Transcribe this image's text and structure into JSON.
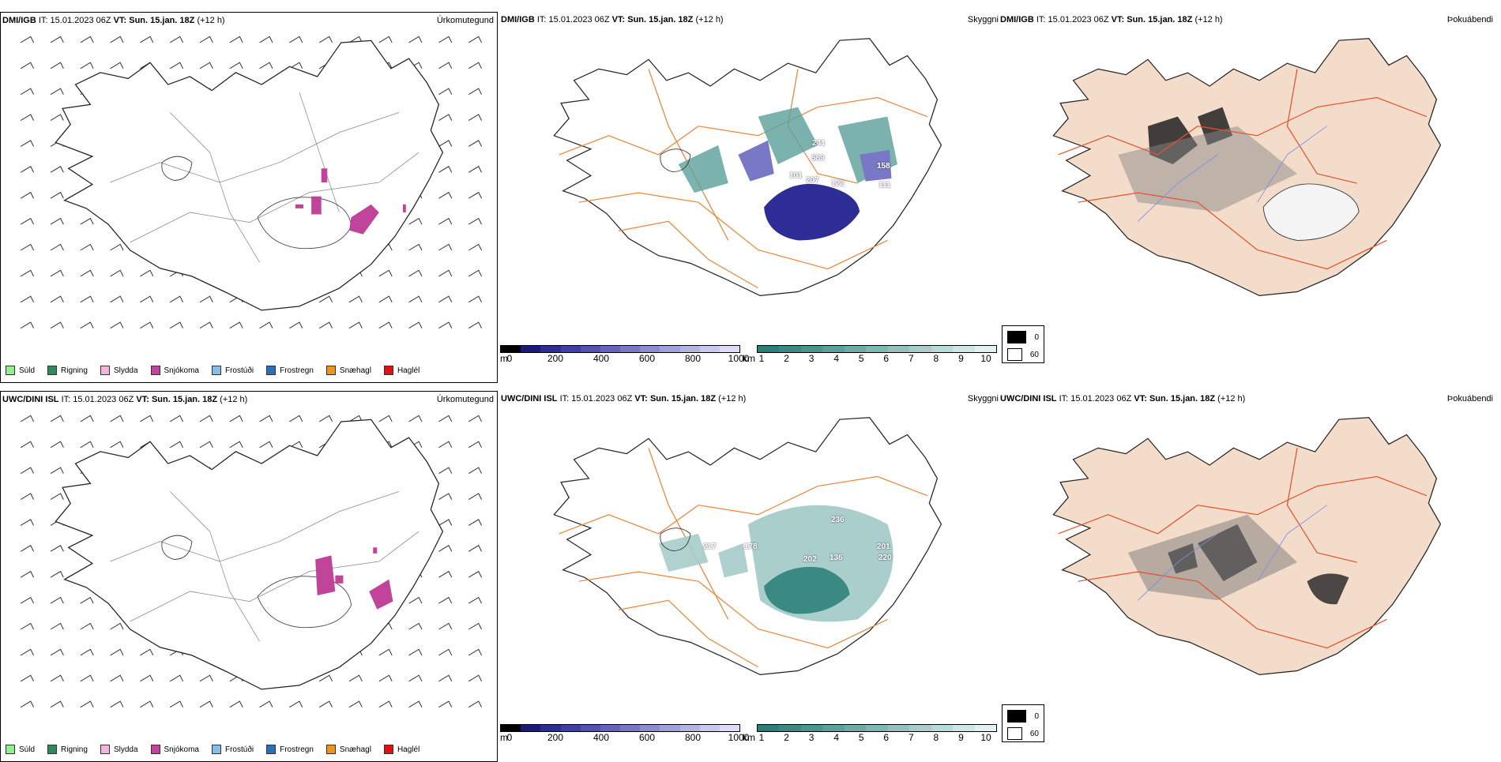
{
  "panels": {
    "p1": {
      "source": "DMI/IGB",
      "it_label": "IT:",
      "it": "15.01.2023 06Z",
      "vt_label": "VT:",
      "vt": "Sun. 15.jan. 18Z",
      "lead": "(+12 h)",
      "title": "Úrkomutegund"
    },
    "p2": {
      "source": "DMI/IGB",
      "it_label": "IT:",
      "it": "15.01.2023 06Z",
      "vt_label": "VT:",
      "vt": "Sun. 15.jan. 18Z",
      "lead": "(+12 h)",
      "title": "Skyggni"
    },
    "p3": {
      "source": "DMI/IGB",
      "it_label": "IT:",
      "it": "15.01.2023 06Z",
      "vt_label": "VT:",
      "vt": "Sun. 15.jan. 18Z",
      "lead": "(+12 h)",
      "title": "Þokuábendi"
    },
    "p4": {
      "source": "UWC/DINI ISL",
      "it_label": "IT:",
      "it": "15.01.2023 06Z",
      "vt_label": "VT:",
      "vt": "Sun. 15.jan. 18Z",
      "lead": "(+12 h)",
      "title": "Úrkomutegund"
    },
    "p5": {
      "source": "UWC/DINI ISL",
      "it_label": "IT:",
      "it": "15.01.2023 06Z",
      "vt_label": "VT:",
      "vt": "Sun. 15.jan. 18Z",
      "lead": "(+12 h)",
      "title": "Skyggni"
    },
    "p6": {
      "source": "UWC/DINI ISL",
      "it_label": "IT:",
      "it": "15.01.2023 06Z",
      "vt_label": "VT:",
      "vt": "Sun. 15.jan. 18Z",
      "lead": "(+12 h)",
      "title": "Þokuábendi"
    }
  },
  "precip_legend": [
    {
      "label": "Súld",
      "color": "#90ee90"
    },
    {
      "label": "Rigning",
      "color": "#2e8b57"
    },
    {
      "label": "Slydda",
      "color": "#f4b6d8"
    },
    {
      "label": "Snjókoma",
      "color": "#c0449a"
    },
    {
      "label": "Frostúði",
      "color": "#87bde8"
    },
    {
      "label": "Frostregn",
      "color": "#2a6fb8"
    },
    {
      "label": "Snæhagl",
      "color": "#f0921e"
    },
    {
      "label": "Haglél",
      "color": "#e01010"
    }
  ],
  "vis_m": {
    "unit": "m",
    "ticks": [
      "0",
      "200",
      "400",
      "600",
      "800",
      "1000"
    ],
    "colors": [
      "#000000",
      "#1a1a7a",
      "#2d2d95",
      "#3f3fa8",
      "#5151b3",
      "#6464bd",
      "#7878c7",
      "#8c8cd0",
      "#a0a0da",
      "#b4b4e3",
      "#c8c8ec",
      "#dcdcf5"
    ]
  },
  "vis_km": {
    "unit": "km",
    "ticks": [
      "1",
      "2",
      "3",
      "4",
      "5",
      "6",
      "7",
      "8",
      "9",
      "10"
    ],
    "colors": [
      "#2a7f78",
      "#3a8a83",
      "#4b958f",
      "#5ca09a",
      "#6eaba6",
      "#80b7b2",
      "#93c2be",
      "#a6cdca",
      "#badad7",
      "#cee6e4",
      "#e2f1f0"
    ]
  },
  "fog_legend": [
    {
      "label": "0",
      "color": "#000000"
    },
    {
      "label": "60",
      "color": "#ffffff"
    }
  ],
  "vis_labels_top": [
    "241",
    "589",
    "101",
    "207",
    "122",
    "111",
    "158"
  ],
  "vis_labels_bottom": [
    "236",
    "201",
    "178",
    "202",
    "136",
    "220",
    "217"
  ]
}
